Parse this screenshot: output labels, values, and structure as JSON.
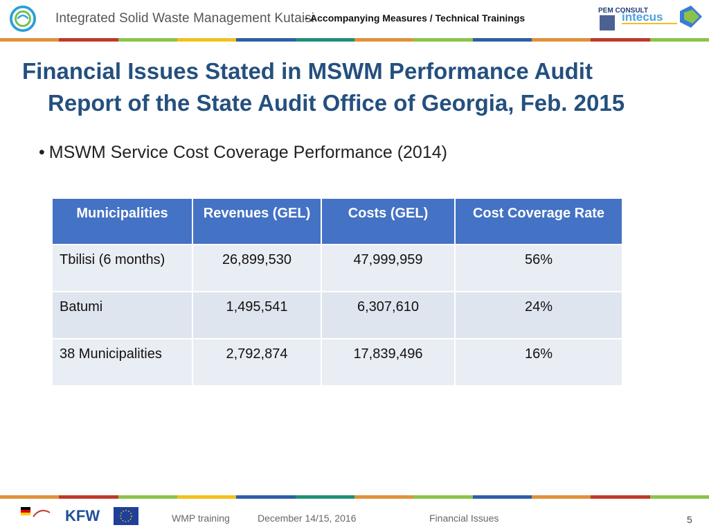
{
  "header": {
    "title": "Integrated Solid Waste Management Kutaisi",
    "subtitle": "-  Accompanying Measures  /  Technical Trainings",
    "partner_logo_1": "PEM CONSULT",
    "partner_logo_2": "intecus"
  },
  "stripe_colors": [
    "#e0913a",
    "#c0392b",
    "#8bc34a",
    "#f2c01d",
    "#2f5fa5",
    "#1e8e7a",
    "#e0913a",
    "#8bc34a",
    "#2f5fa5",
    "#e0913a",
    "#c0392b",
    "#8bc34a"
  ],
  "slide": {
    "title_line1": "Financial Issues Stated in MSWM Performance Audit",
    "title_line2": "Report of the State Audit Office of Georgia, Feb. 2015",
    "bullet": "MSWM Service Cost Coverage Performance (2014)"
  },
  "table": {
    "headers": [
      "Municipalities",
      "Revenues (GEL)",
      "Costs (GEL)",
      "Cost Coverage Rate"
    ],
    "rows": [
      [
        "Tbilisi (6 months)",
        "26,899,530",
        "47,999,959",
        "56%"
      ],
      [
        "Batumi",
        "1,495,541",
        "6,307,610",
        "24%"
      ],
      [
        "38 Municipalities",
        "2,792,874",
        "17,839,496",
        "16%"
      ]
    ]
  },
  "footer": {
    "kfw": "KFW",
    "training": "WMP training",
    "date": "December 14/15, 2016",
    "topic": "Financial Issues",
    "page": "5"
  }
}
